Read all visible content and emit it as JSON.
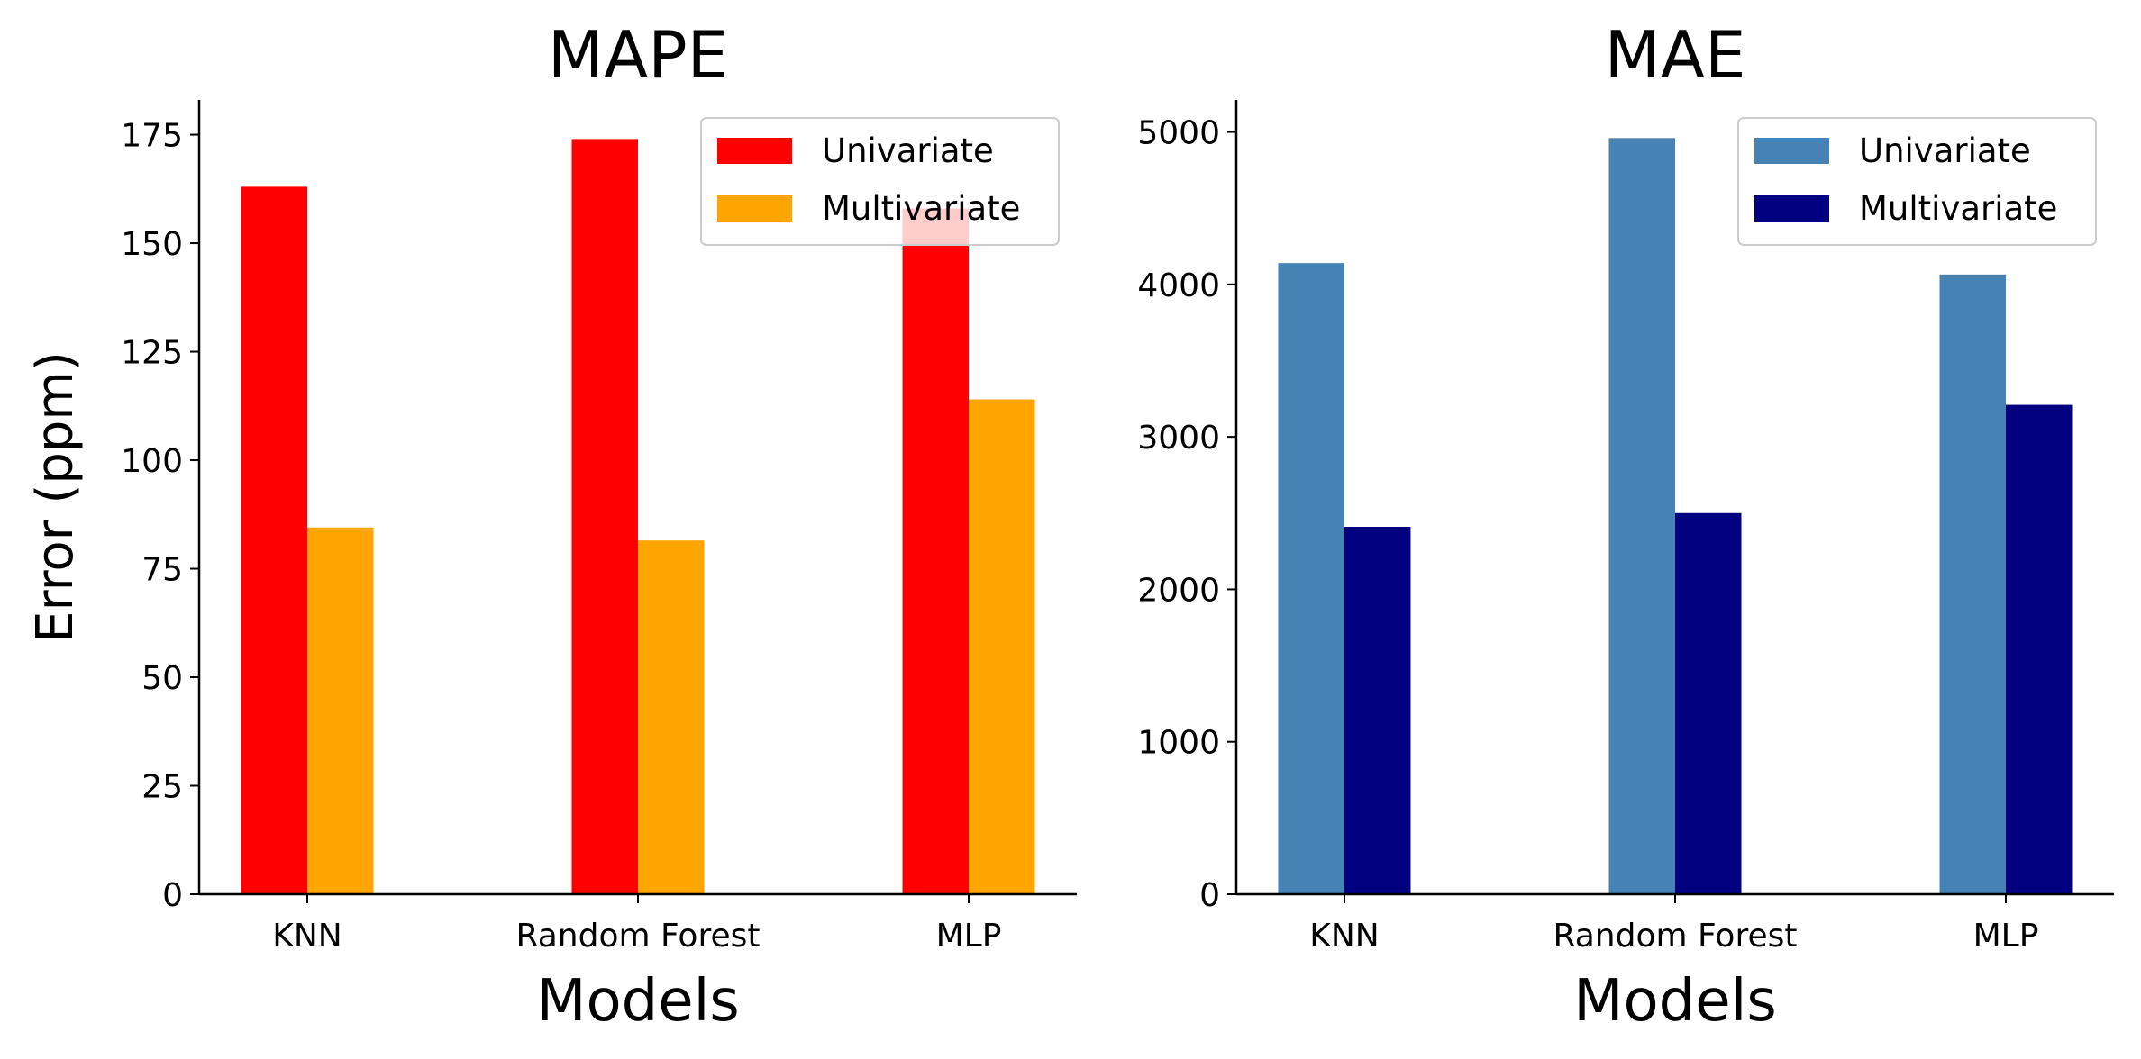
{
  "chart_data": [
    {
      "type": "bar",
      "title": "MAPE",
      "xlabel": "Models",
      "ylabel": "Error (ppm)",
      "categories": [
        "KNN",
        "Random Forest",
        "MLP"
      ],
      "series": [
        {
          "name": "Univariate",
          "values": [
            163,
            174,
            158
          ],
          "color": "#ff0000"
        },
        {
          "name": "Multivariate",
          "values": [
            84.5,
            81.5,
            114
          ],
          "color": "#ffa500"
        }
      ],
      "ylim": [
        0,
        183
      ],
      "yticks": [
        0,
        25,
        50,
        75,
        100,
        125,
        150,
        175
      ],
      "legend": "top-right",
      "grid": false
    },
    {
      "type": "bar",
      "title": "MAE",
      "xlabel": "Models",
      "ylabel": "",
      "categories": [
        "KNN",
        "Random Forest",
        "MLP"
      ],
      "series": [
        {
          "name": "Univariate",
          "values": [
            4140,
            4960,
            4065
          ],
          "color": "#4682b4"
        },
        {
          "name": "Multivariate",
          "values": [
            2410,
            2500,
            3210
          ],
          "color": "#000080"
        }
      ],
      "ylim": [
        0,
        5210
      ],
      "yticks": [
        0,
        1000,
        2000,
        3000,
        4000,
        5000
      ],
      "legend": "top-right",
      "grid": false
    }
  ]
}
